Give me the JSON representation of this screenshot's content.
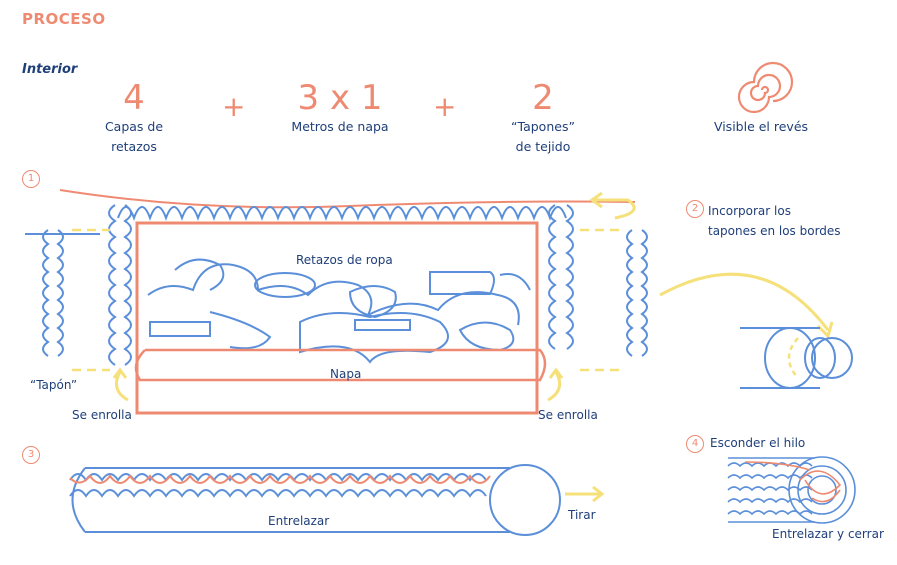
{
  "header": {
    "title": "PROCESO",
    "subtitle": "Interior"
  },
  "summary": [
    {
      "value": "4",
      "label_line1": "Capas de",
      "label_line2": "retazos"
    },
    {
      "value": "3 x 1",
      "label_line1": "Metros de napa",
      "label_line2": ""
    },
    {
      "value": "2",
      "label_line1": "“Tapones”",
      "label_line2": "de tejido"
    }
  ],
  "summary_operator": "+",
  "reverse": {
    "label": "Visible el revés",
    "icon": "spiral-icon"
  },
  "steps": {
    "step1": {
      "number": "1",
      "scraps_label": "Retazos de ropa",
      "batting_label": "Napa",
      "plug_label": "“Tapón”",
      "roll_left": "Se enrolla",
      "roll_right": "Se enrolla"
    },
    "step2": {
      "number": "2",
      "line1": "Incorporar los",
      "line2": "tapones en los bordes"
    },
    "step3": {
      "number": "3",
      "interlace": "Entrelazar",
      "pull": "Tirar"
    },
    "step4": {
      "number": "4",
      "title": "Esconder el hilo",
      "caption": "Entrelazar y cerrar"
    }
  },
  "colors": {
    "coral": "#ef8a72",
    "blue": "#5b8fd9",
    "navy": "#1f3f7a",
    "yellow": "#f5e07a"
  }
}
